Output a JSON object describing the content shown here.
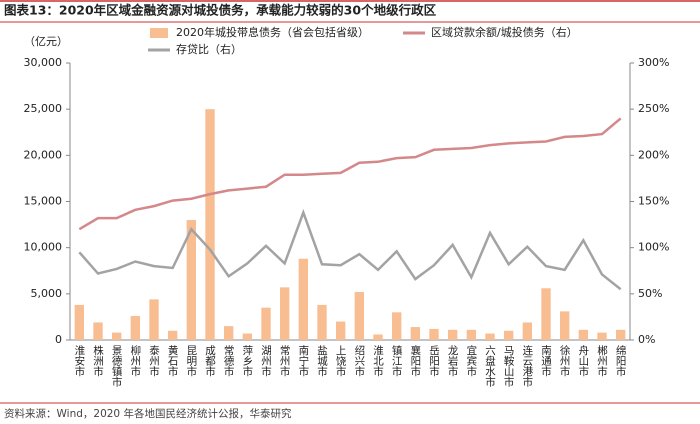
{
  "chart_data": {
    "type": "bar",
    "title": "图表13：2020年区域金融资源对城投债务，承载能力较弱的30个地级行政区",
    "source": "资料来源：Wind，2020 年各地国民经济统计公报，华泰研究",
    "ylabel": "（亿元）",
    "categories": [
      "淮安市",
      "株洲市",
      "景德镇市",
      "柳州市",
      "泰州市",
      "黄石市",
      "昆明市",
      "成都市",
      "常德市",
      "萍乡市",
      "湖州市",
      "常州市",
      "南宁市",
      "盐城市",
      "上饶市",
      "绍兴市",
      "淮北市",
      "镇江市",
      "襄阳市",
      "岳阳市",
      "龙岩市",
      "宜宾市",
      "六盘水市",
      "马鞍山市",
      "连云港市",
      "南通市",
      "徐州市",
      "舟山市",
      "郴州市",
      "绵阳市"
    ],
    "series": [
      {
        "name": "2020年城投带息债务（省会包括省级）",
        "type": "bar",
        "color": "#f8bd90",
        "values": [
          3800,
          1900,
          800,
          2600,
          4400,
          1000,
          13000,
          25000,
          1500,
          700,
          3500,
          5700,
          8800,
          3800,
          2000,
          5200,
          600,
          3000,
          1400,
          1200,
          1100,
          1100,
          700,
          1000,
          1900,
          5600,
          3100,
          1100,
          800,
          1100
        ]
      },
      {
        "name": "区域贷款余额/城投债务（右）",
        "type": "line",
        "axis": "y2",
        "color": "#d4888a",
        "values": [
          120,
          132,
          132,
          141,
          145,
          151,
          153,
          158,
          162,
          164,
          166,
          179,
          179,
          180,
          181,
          192,
          193,
          197,
          198,
          206,
          207,
          208,
          211,
          213,
          214,
          215,
          220,
          221,
          223,
          240
        ]
      },
      {
        "name": "存贷比（右）",
        "type": "line",
        "axis": "y2",
        "color": "#a3a3a3",
        "values": [
          95,
          72,
          77,
          85,
          80,
          78,
          120,
          98,
          69,
          83,
          102,
          83,
          138,
          82,
          81,
          93,
          76,
          96,
          66,
          81,
          103,
          68,
          116,
          82,
          101,
          80,
          76,
          108,
          71,
          55
        ]
      }
    ],
    "ylim": [
      0,
      30000
    ],
    "yticks": [
      0,
      {
        "value": 5000,
        "label": "5,000"
      },
      {
        "value": 10000,
        "label": "10,000"
      },
      {
        "value": 15000,
        "label": "15,000"
      },
      {
        "value": 20000,
        "label": "20,000"
      },
      {
        "value": 25000,
        "label": "25,000"
      },
      {
        "value": 30000,
        "label": "30,000"
      }
    ],
    "y2lim": [
      0,
      300
    ],
    "y2ticks": [
      {
        "value": 0,
        "label": "0%"
      },
      {
        "value": 50,
        "label": "50%"
      },
      {
        "value": 100,
        "label": "100%"
      },
      {
        "value": 150,
        "label": "150%"
      },
      {
        "value": 200,
        "label": "200%"
      },
      {
        "value": 250,
        "label": "250%"
      },
      {
        "value": 300,
        "label": "300%"
      }
    ],
    "grid": false
  }
}
